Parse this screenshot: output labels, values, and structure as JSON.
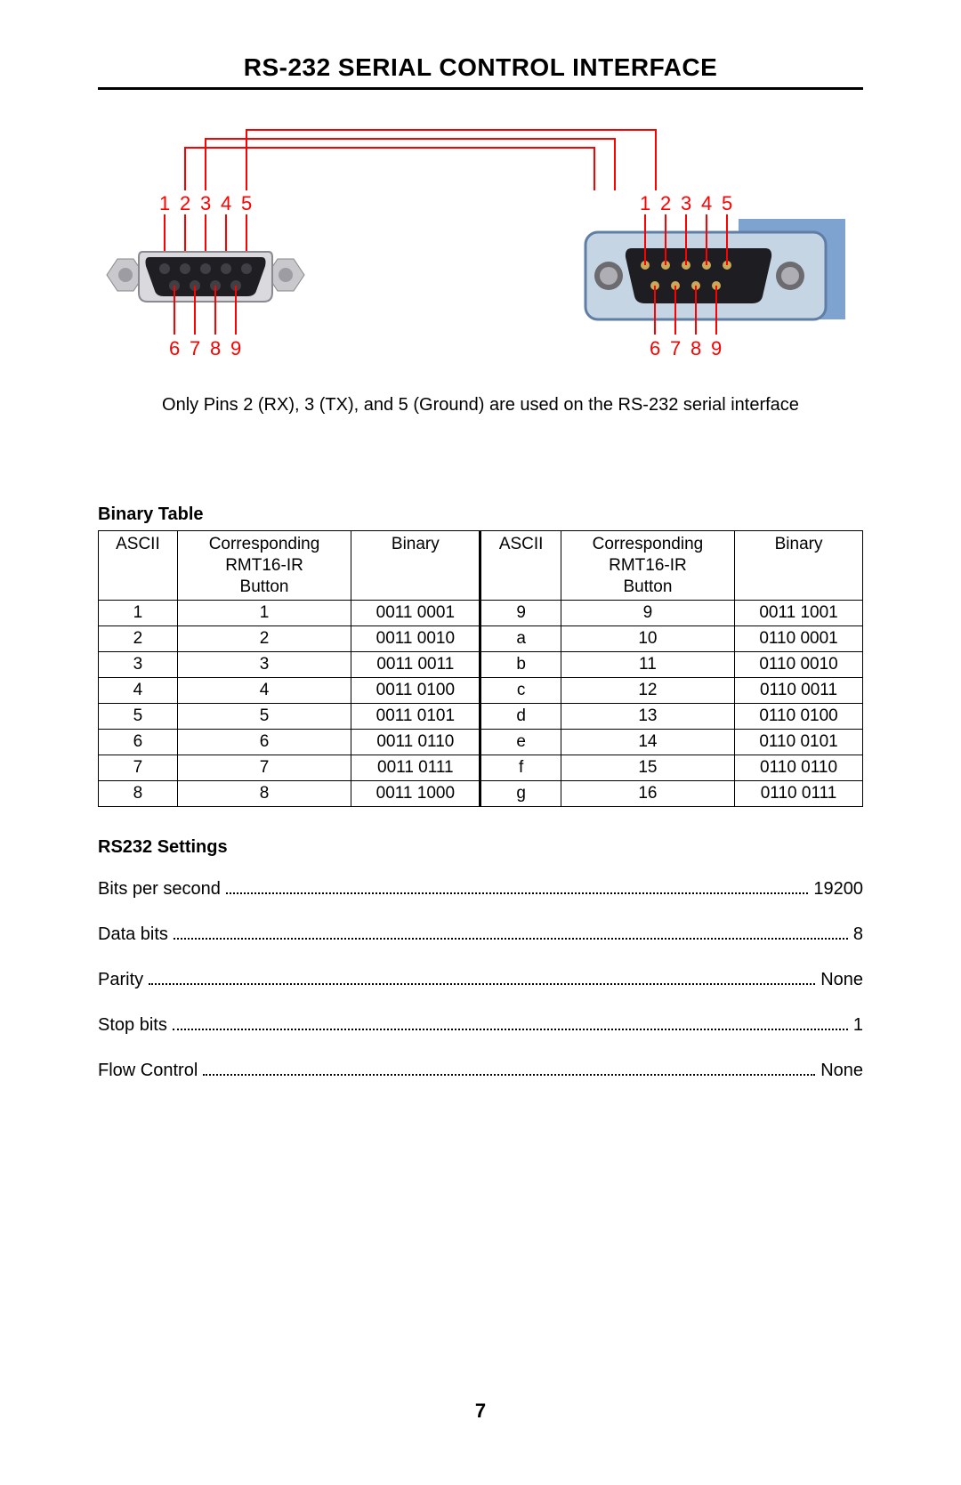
{
  "title": "RS-232 SERIAL CONTROL INTERFACE",
  "diagram": {
    "caption": "Only Pins 2 (RX), 3 (TX), and 5 (Ground) are used on the RS-232 serial interface",
    "top_labels": [
      "1",
      "2",
      "3",
      "4",
      "5"
    ],
    "bottom_labels": [
      "6",
      "7",
      "8",
      "9"
    ],
    "label_color": "#ff0000",
    "line_color": "#ff0000",
    "connectors": {
      "line_width": 2,
      "left_shell_fill": "#d9d9de",
      "left_body_fill": "#1f1f23",
      "pin_hole_fill": "#2a2a2e",
      "nut_fill": "#c8c8cd",
      "right_shell_fill": "#c6d5e3",
      "right_shell_shadow": "#5f7ea6",
      "right_body_fill": "#1e1e22",
      "right_pin_fill": "#c9a85a",
      "right_screw_dark": "#6b6b70",
      "right_screw_light": "#aeaeb4"
    }
  },
  "binary_table": {
    "heading": "Binary Table",
    "columns": [
      "ASCII",
      "Corresponding\nRMT16-IR\nButton",
      "Binary"
    ],
    "rows_left": [
      [
        "1",
        "1",
        "0011 0001"
      ],
      [
        "2",
        "2",
        "0011 0010"
      ],
      [
        "3",
        "3",
        "0011 0011"
      ],
      [
        "4",
        "4",
        "0011 0100"
      ],
      [
        "5",
        "5",
        "0011 0101"
      ],
      [
        "6",
        "6",
        "0011 0110"
      ],
      [
        "7",
        "7",
        "0011 0111"
      ],
      [
        "8",
        "8",
        "0011 1000"
      ]
    ],
    "rows_right": [
      [
        "9",
        "9",
        "0011 1001"
      ],
      [
        "a",
        "10",
        "0110 0001"
      ],
      [
        "b",
        "11",
        "0110 0010"
      ],
      [
        "c",
        "12",
        "0110 0011"
      ],
      [
        "d",
        "13",
        "0110 0100"
      ],
      [
        "e",
        "14",
        "0110 0101"
      ],
      [
        "f",
        "15",
        "0110 0110"
      ],
      [
        "g",
        "16",
        "0110 0111"
      ]
    ]
  },
  "settings": {
    "heading": "RS232 Settings",
    "items": [
      {
        "label": "Bits per second",
        "value": "19200"
      },
      {
        "label": "Data bits",
        "value": "8"
      },
      {
        "label": "Parity",
        "value": "None"
      },
      {
        "label": "Stop bits",
        "value": "1"
      },
      {
        "label": "Flow Control",
        "value": "None"
      }
    ]
  },
  "page_number": "7"
}
